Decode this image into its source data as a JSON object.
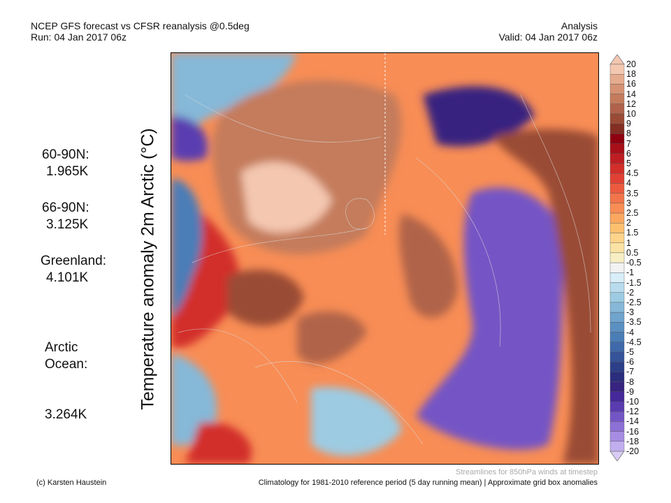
{
  "header": {
    "title": "NCEP GFS forecast vs CFSR reanalysis @0.5deg",
    "run": "Run: 04 Jan 2017 06z",
    "type": "Analysis",
    "valid": "Valid: 04 Jan 2017 06z"
  },
  "stats": [
    {
      "region": "60-90N:",
      "value": "1.965K"
    },
    {
      "region": "66-90N:",
      "value": "3.125K"
    },
    {
      "region": "Greenland:",
      "value": "4.101K"
    },
    {
      "region": "Arctic\nOcean:",
      "value": "3.264K"
    }
  ],
  "map": {
    "ylabel": "Temperature anomaly 2m Arctic (°C)",
    "projection": "polar stereographic",
    "overlay": "streamlines"
  },
  "colorbar": {
    "labels": [
      "20",
      "18",
      "16",
      "14",
      "12",
      "10",
      "9",
      "8",
      "7",
      "6",
      "5",
      "4.5",
      "4",
      "3.5",
      "3",
      "2.5",
      "2",
      "1.5",
      "1",
      "0.5",
      "-0.5",
      "-1",
      "-1.5",
      "-2",
      "-2.5",
      "-3",
      "-3.5",
      "-4",
      "-4.5",
      "-5",
      "-6",
      "-7",
      "-8",
      "-9",
      "-10",
      "-12",
      "-14",
      "-16",
      "-18",
      "-20"
    ],
    "colors": [
      "#f4c7b0",
      "#e6ab8e",
      "#d69273",
      "#c47b5c",
      "#b0634a",
      "#9a4b36",
      "#842e23",
      "#8f0010",
      "#a80f18",
      "#be1e22",
      "#d22e2a",
      "#e04134",
      "#eb5a3e",
      "#f2744a",
      "#f88d55",
      "#fba75f",
      "#fdc06e",
      "#fdd489",
      "#fae3a4",
      "#f7eec3",
      "#f2f2f2",
      "#d8eef8",
      "#b8dced",
      "#9dcbe2",
      "#86b8d8",
      "#6fa4cd",
      "#5b90c2",
      "#4b7db7",
      "#3f69aa",
      "#355399",
      "#2c3f88",
      "#2b2d7d",
      "#372480",
      "#45289a",
      "#5a3cb0",
      "#7455c5",
      "#8d70d6",
      "#a68de3",
      "#c0aeee",
      "#d8ccf6"
    ]
  },
  "footer": {
    "streamlines": "Streamlines for 850hPa winds at timestep",
    "climatology": "Climatology for 1981-2010 reference period (5 day running mean) | Approximate grid box anomalies",
    "credit": "(c) Karsten Haustein"
  }
}
